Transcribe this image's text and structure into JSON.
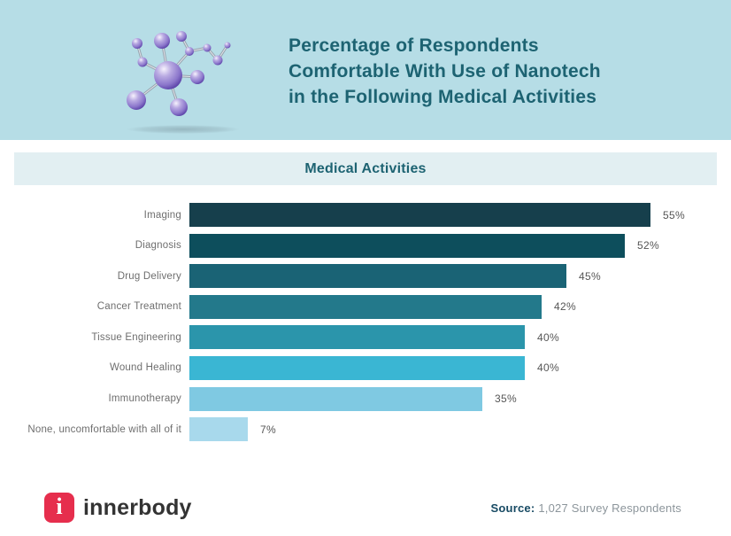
{
  "header": {
    "title_lines": [
      "Percentage of Respondents",
      "Comfortable With Use of Nanotech",
      "in the Following Medical Activities"
    ]
  },
  "banner": {
    "label": "Medical Activities"
  },
  "chart_data": {
    "type": "bar",
    "orientation": "horizontal",
    "title": "Percentage of Respondents Comfortable With Use of Nanotech in the Following Medical Activities",
    "group_label": "Medical Activities",
    "categories": [
      "Imaging",
      "Diagnosis",
      "Drug Delivery",
      "Cancer Treatment",
      "Tissue Engineering",
      "Wound Healing",
      "Immunotherapy",
      "None, uncomfortable with all of it"
    ],
    "values": [
      55,
      52,
      45,
      42,
      40,
      40,
      35,
      7
    ],
    "value_labels": [
      "55%",
      "52%",
      "45%",
      "42%",
      "40%",
      "40%",
      "35%",
      "7%"
    ],
    "bar_colors": [
      "#163f4c",
      "#0d4e5c",
      "#1a6375",
      "#23798b",
      "#2b95ab",
      "#3ab6d3",
      "#7fc9e2",
      "#a8d9ec"
    ],
    "xlim": [
      0,
      60
    ],
    "grid": false,
    "legend": "none",
    "value_label_position": "right-of-bar"
  },
  "footer": {
    "brand": "innerbody",
    "logo_letter": "i",
    "source_label": "Source:",
    "source_value": "1,027 Survey Respondents"
  },
  "colors": {
    "header_bg": "#b6dde6",
    "banner_bg": "#e2eff2",
    "title_text": "#1d6372",
    "category_label_text": "#6e6e6e",
    "value_label_text": "#555555",
    "brand_red": "#e62e4d",
    "brand_text": "#333333",
    "source_label_text": "#174a63",
    "source_value_text": "#8c959b"
  }
}
